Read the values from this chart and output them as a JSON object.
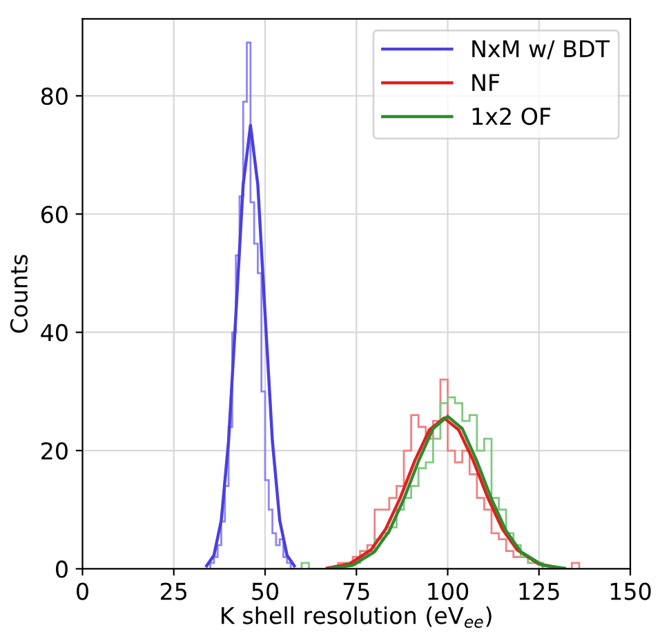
{
  "chart_data": {
    "type": "histogram",
    "xlabel": "K shell resolution (eV$_{ee}$)",
    "ylabel": "Counts",
    "xlim": [
      0,
      150
    ],
    "xticks": [
      0,
      25,
      50,
      75,
      100,
      125,
      150
    ],
    "ylim": [
      0,
      93
    ],
    "yticks": [
      0,
      20,
      40,
      60,
      80
    ],
    "grid": true,
    "legend": "top right",
    "series": [
      {
        "color": "#8c85f5",
        "bins": [
          35,
          36,
          37,
          38,
          39,
          40,
          41,
          42,
          43,
          44,
          45,
          46,
          47,
          48,
          49,
          50,
          51,
          52,
          53,
          54,
          55,
          56,
          57,
          58
        ],
        "values": [
          1,
          2,
          4,
          8,
          14,
          24,
          40,
          53,
          63,
          79,
          89,
          62,
          55,
          50,
          30,
          15,
          10,
          6,
          4,
          5,
          2,
          1,
          0
        ]
      },
      {
        "color": "#f08080",
        "bins": [
          70,
          72,
          74,
          76,
          78,
          80,
          82,
          84,
          86,
          88,
          90,
          92,
          94,
          96,
          98,
          100,
          102,
          104,
          106,
          108,
          110,
          112,
          114,
          116,
          118,
          120,
          122,
          124,
          126,
          128,
          130,
          132,
          134,
          136
        ],
        "values": [
          1,
          1,
          2,
          3,
          4,
          10,
          10,
          12,
          14,
          20,
          26,
          24,
          22,
          25,
          32,
          20,
          18,
          20,
          16,
          12,
          10,
          6,
          5,
          3,
          2,
          2,
          1,
          1,
          0,
          0,
          0,
          0,
          1
        ]
      },
      {
        "color": "#80c880",
        "bins": [
          60,
          62,
          64,
          66,
          68,
          70,
          72,
          74,
          76,
          78,
          80,
          82,
          84,
          86,
          88,
          90,
          92,
          94,
          96,
          98,
          100,
          102,
          104,
          106,
          108,
          110,
          112,
          114,
          116,
          118,
          120,
          122,
          124,
          126,
          128,
          130
        ],
        "values": [
          1,
          0,
          0,
          0,
          0,
          0,
          1,
          1,
          2,
          3,
          5,
          6,
          7,
          10,
          12,
          14,
          17,
          18,
          22,
          28,
          29,
          28,
          25,
          26,
          20,
          22,
          12,
          10,
          6,
          4,
          2,
          1,
          1,
          0,
          0
        ]
      },
      {
        "type": "line",
        "name": "NxM w/ BDT",
        "color": "#4b3fe0",
        "x": [
          34,
          36,
          38,
          40,
          42,
          44,
          46,
          48,
          50,
          52,
          54,
          56,
          58
        ],
        "values": [
          0.5,
          2.3,
          8.2,
          21.6,
          43,
          65,
          75,
          65,
          43,
          21.6,
          8.2,
          2.3,
          0.5
        ]
      },
      {
        "type": "line",
        "name": "NF",
        "color": "#e02020",
        "x": [
          67,
          73,
          79,
          83,
          87,
          91,
          95,
          99,
          103,
          107,
          111,
          115,
          119,
          125,
          131
        ],
        "values": [
          0.1,
          0.8,
          3.2,
          6.7,
          12.0,
          18.3,
          23.5,
          25.5,
          23.5,
          18.3,
          12.0,
          6.7,
          3.2,
          0.8,
          0.1
        ]
      },
      {
        "type": "line",
        "name": "1x2 OF",
        "color": "#2e8b2e",
        "x": [
          68,
          74,
          80,
          84,
          88,
          92,
          96,
          100,
          104,
          108,
          112,
          116,
          120,
          126,
          132
        ],
        "values": [
          0.1,
          0.6,
          2.9,
          6.4,
          11.8,
          18.2,
          23.7,
          25.8,
          23.7,
          18.2,
          11.8,
          6.4,
          2.9,
          0.6,
          0.1
        ]
      }
    ]
  }
}
